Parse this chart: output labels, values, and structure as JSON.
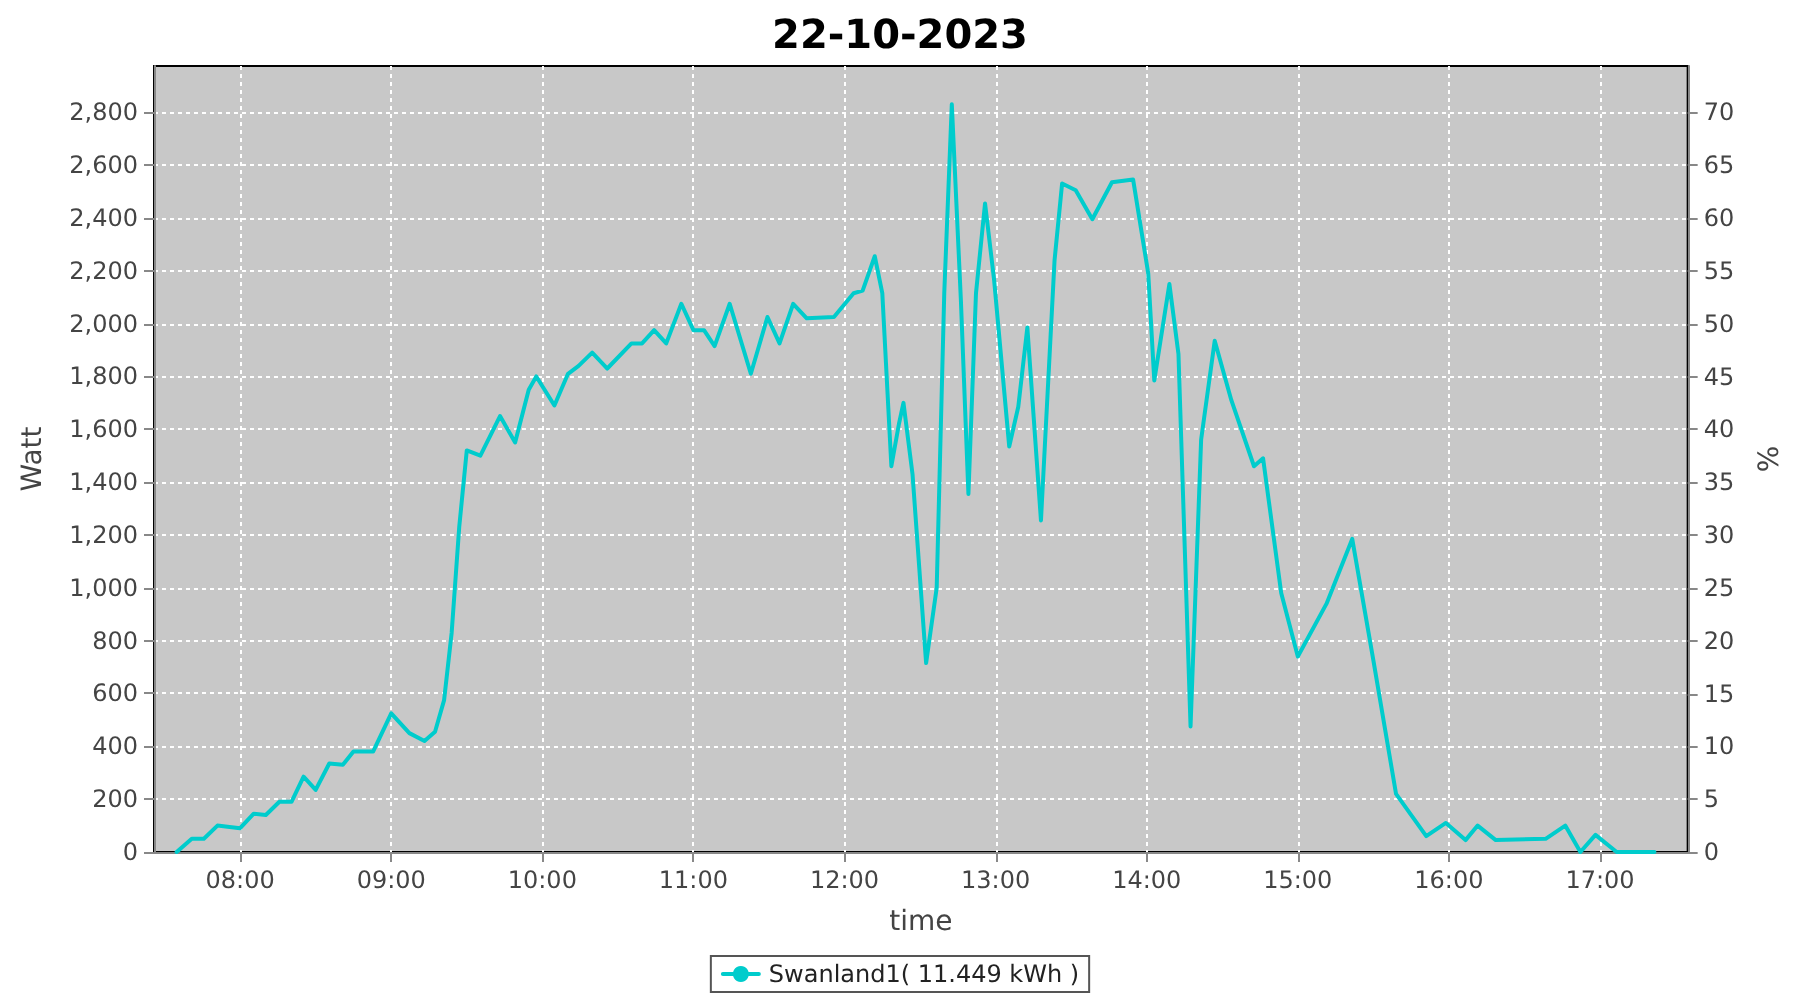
{
  "chart_data": {
    "type": "line",
    "title": "22-10-2023",
    "xlabel": "time",
    "ylabel": "Watt",
    "y2label": "%",
    "xlim": [
      7.43,
      17.58
    ],
    "xticks": [
      {
        "value": 8,
        "label": "08:00"
      },
      {
        "value": 9,
        "label": "09:00"
      },
      {
        "value": 10,
        "label": "10:00"
      },
      {
        "value": 11,
        "label": "11:00"
      },
      {
        "value": 12,
        "label": "12:00"
      },
      {
        "value": 13,
        "label": "13:00"
      },
      {
        "value": 14,
        "label": "14:00"
      },
      {
        "value": 15,
        "label": "15:00"
      },
      {
        "value": 16,
        "label": "16:00"
      },
      {
        "value": 17,
        "label": "17:00"
      }
    ],
    "ylim": [
      0,
      2975
    ],
    "yticks": [
      0,
      200,
      400,
      600,
      800,
      {
        "value": 1000,
        "label": "1,000"
      },
      {
        "value": 1200,
        "label": "1,200"
      },
      {
        "value": 1400,
        "label": "1,400"
      },
      {
        "value": 1600,
        "label": "1,600"
      },
      {
        "value": 1800,
        "label": "1,800"
      },
      {
        "value": 2000,
        "label": "2,000"
      },
      {
        "value": 2200,
        "label": "2,200"
      },
      {
        "value": 2400,
        "label": "2,400"
      },
      {
        "value": 2600,
        "label": "2,600"
      },
      {
        "value": 2800,
        "label": "2,800"
      }
    ],
    "y2lim": [
      0,
      74.4
    ],
    "y2ticks": [
      0,
      5,
      10,
      15,
      20,
      25,
      30,
      35,
      40,
      45,
      50,
      55,
      60,
      65,
      70
    ],
    "grid": true,
    "legend": "bottom",
    "marker": "none",
    "line_style": "solid",
    "series": [
      {
        "name": "Swanland1( 11.449 kWh )",
        "color": "#00cccc",
        "x": [
          7.58,
          7.68,
          7.76,
          7.85,
          7.93,
          8.0,
          8.09,
          8.17,
          8.26,
          8.34,
          8.42,
          8.5,
          8.59,
          8.68,
          8.75,
          8.88,
          9.0,
          9.12,
          9.22,
          9.29,
          9.35,
          9.4,
          9.45,
          9.5,
          9.59,
          9.72,
          9.82,
          9.91,
          9.96,
          10.08,
          10.17,
          10.24,
          10.33,
          10.43,
          10.59,
          10.66,
          10.74,
          10.82,
          10.92,
          11.0,
          11.07,
          11.14,
          11.24,
          11.38,
          11.49,
          11.57,
          11.66,
          11.75,
          11.93,
          12.06,
          12.12,
          12.2,
          12.25,
          12.31,
          12.36,
          12.39,
          12.45,
          12.54,
          12.61,
          12.66,
          12.71,
          12.77,
          12.82,
          12.87,
          12.93,
          12.99,
          13.09,
          13.15,
          13.21,
          13.3,
          13.39,
          13.44,
          13.53,
          13.64,
          13.77,
          13.91,
          14.01,
          14.05,
          14.15,
          14.21,
          14.29,
          14.36,
          14.45,
          14.56,
          14.71,
          14.77,
          14.89,
          15.0,
          15.19,
          15.36,
          15.5,
          15.65,
          15.85,
          15.98,
          16.11,
          16.19,
          16.31,
          16.64,
          16.77,
          16.87,
          16.97,
          17.11,
          17.36
        ],
        "values": [
          0,
          50,
          50,
          100,
          95,
          90,
          145,
          140,
          190,
          190,
          285,
          235,
          335,
          330,
          380,
          380,
          525,
          450,
          420,
          455,
          575,
          830,
          1230,
          1520,
          1500,
          1650,
          1550,
          1750,
          1800,
          1690,
          1810,
          1840,
          1890,
          1830,
          1925,
          1925,
          1975,
          1925,
          2075,
          1975,
          1975,
          1915,
          2075,
          1810,
          2025,
          1925,
          2075,
          2020,
          2025,
          2115,
          2125,
          2255,
          2115,
          1460,
          1620,
          1700,
          1430,
          715,
          1000,
          2115,
          2830,
          2090,
          1355,
          2115,
          2455,
          2165,
          1535,
          1685,
          1985,
          1255,
          2240,
          2530,
          2505,
          2395,
          2535,
          2545,
          2190,
          1785,
          2150,
          1885,
          475,
          1560,
          1935,
          1710,
          1460,
          1490,
          980,
          740,
          940,
          1185,
          725,
          220,
          60,
          110,
          45,
          100,
          45,
          50,
          100,
          0,
          65,
          0,
          0
        ]
      }
    ]
  }
}
